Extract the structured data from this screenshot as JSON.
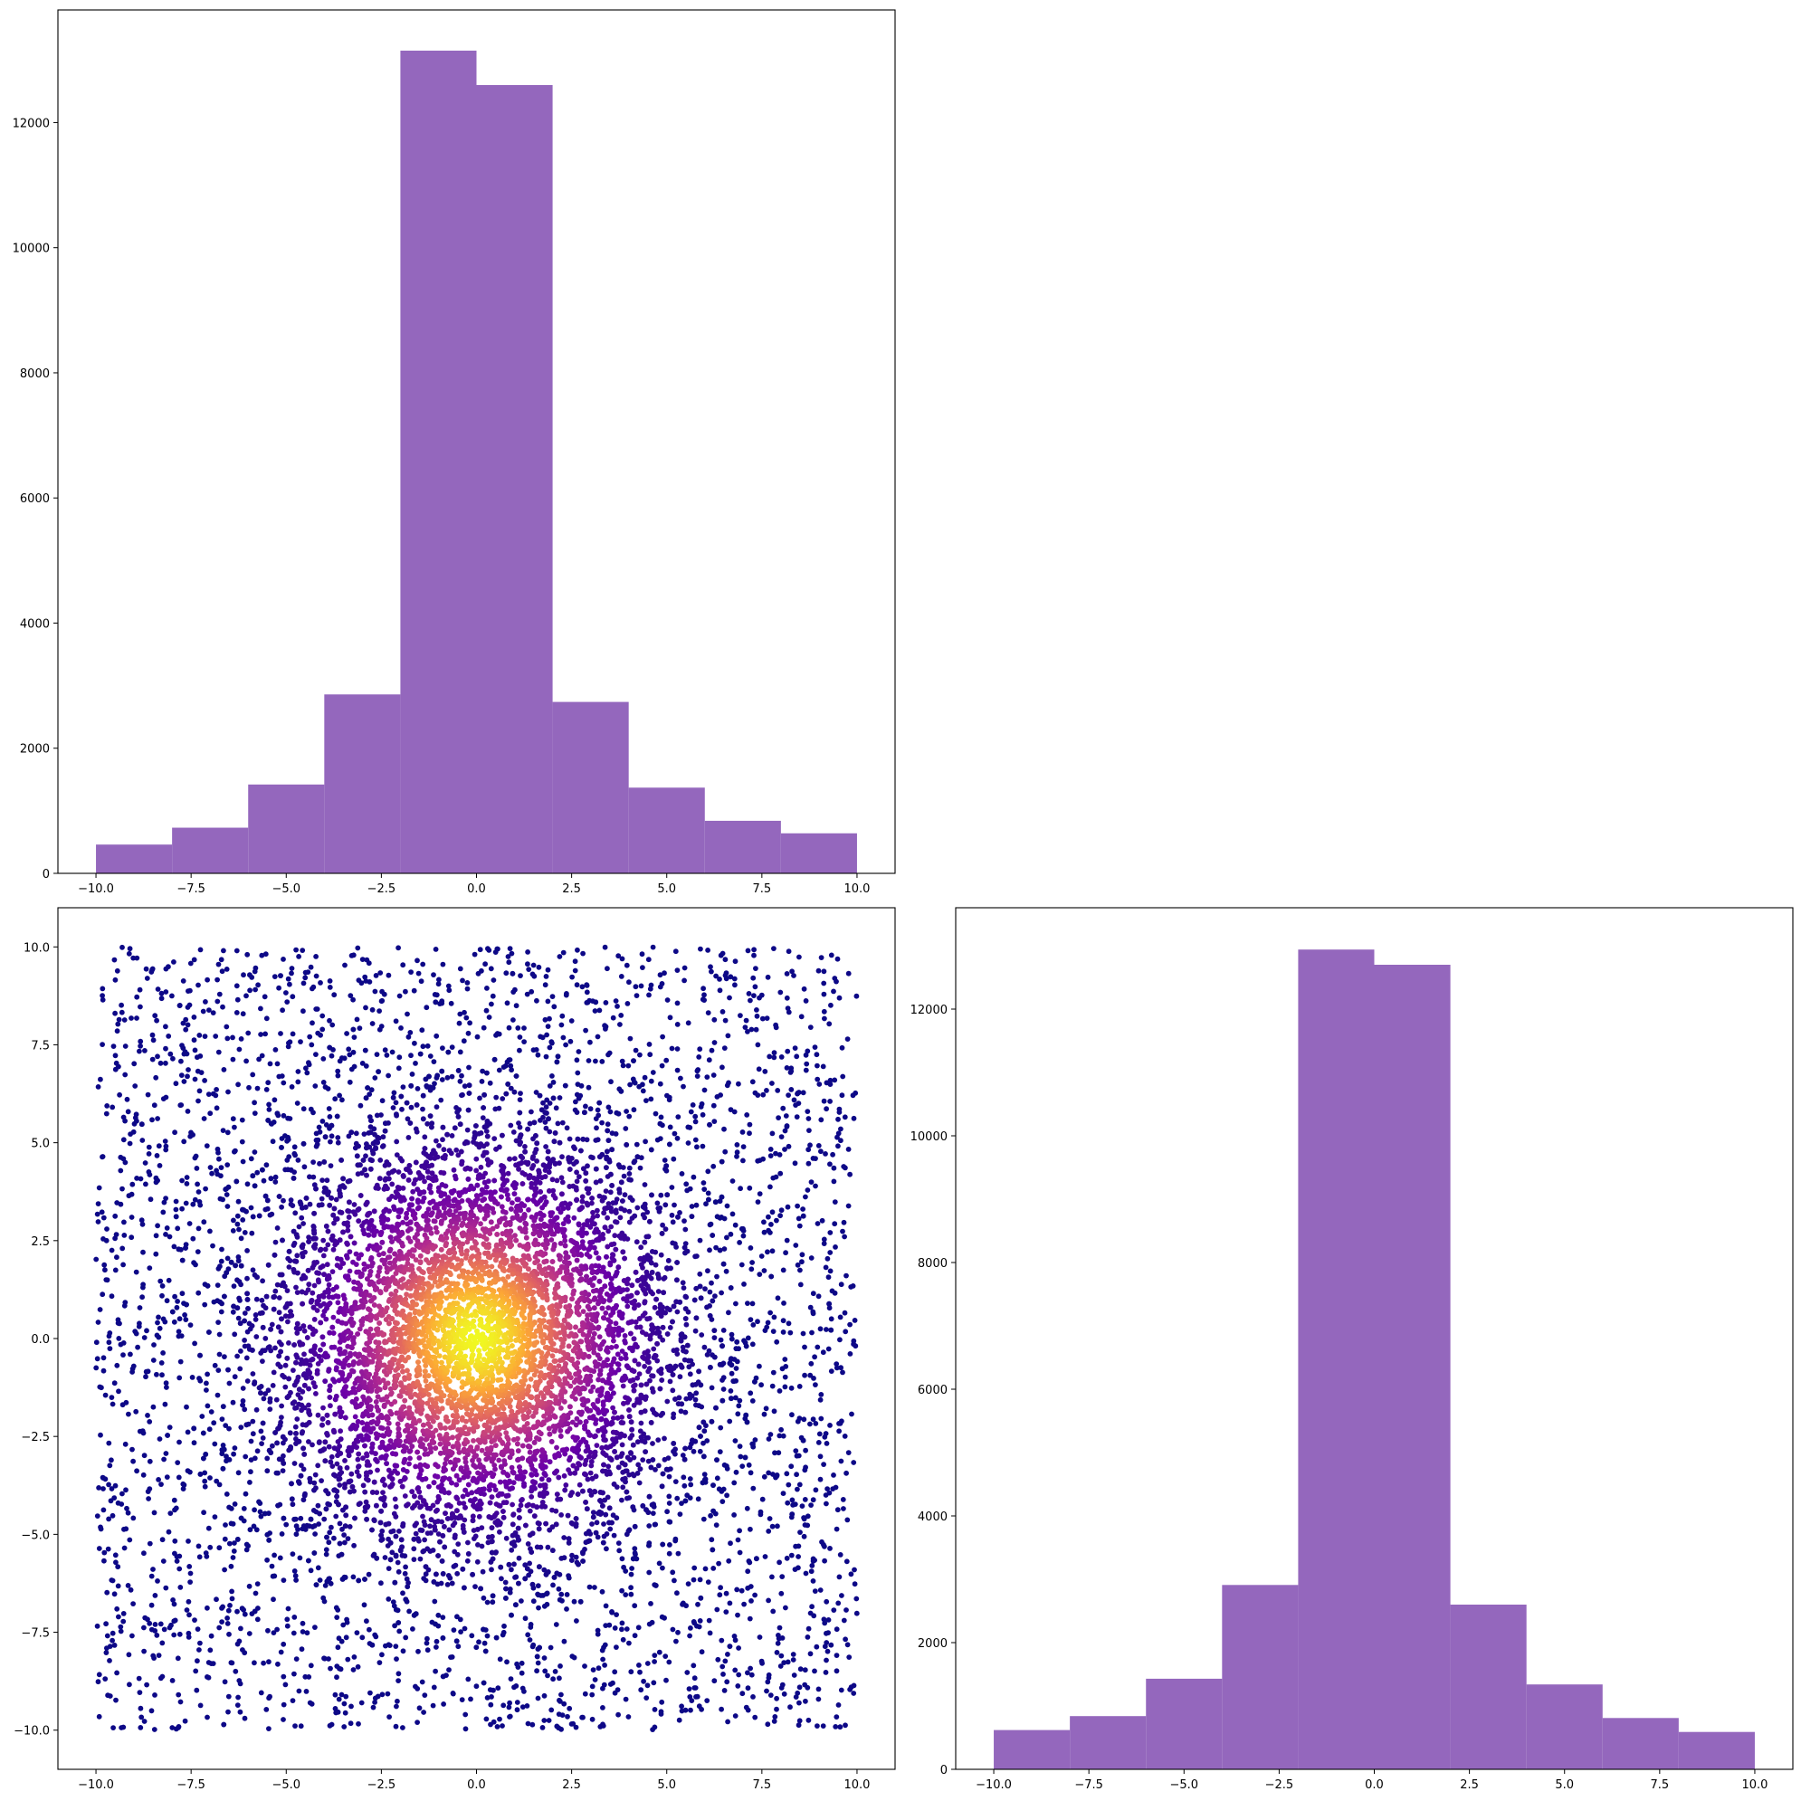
{
  "chart_data": [
    {
      "type": "bar",
      "panel": "top-left",
      "title": "",
      "xlabel": "",
      "ylabel": "",
      "bin_edges": [
        -10,
        -8,
        -6,
        -4,
        -2,
        0,
        2,
        4,
        6,
        8,
        10
      ],
      "values": [
        460,
        730,
        1420,
        2860,
        13150,
        12600,
        2740,
        1370,
        840,
        640
      ],
      "bar_color": "#9467bd",
      "xlim": [
        -11,
        11
      ],
      "ylim": [
        0,
        13800
      ],
      "xticks": [
        -10,
        -7.5,
        -5,
        -2.5,
        0,
        2.5,
        5,
        7.5,
        10
      ],
      "xtick_labels": [
        "−10.0",
        "−7.5",
        "−5.0",
        "−2.5",
        "0.0",
        "2.5",
        "5.0",
        "7.5",
        "10.0"
      ],
      "yticks": [
        0,
        2000,
        4000,
        6000,
        8000,
        10000,
        12000
      ],
      "ytick_labels": [
        "0",
        "2000",
        "4000",
        "6000",
        "8000",
        "10000",
        "12000"
      ],
      "grid": false
    },
    {
      "type": "scatter",
      "panel": "bottom-left",
      "title": "",
      "xlabel": "",
      "ylabel": "",
      "description_of_points": "random points uniform-ish within [-10,10] square, densest near origin, colored by density (plasma colormap: dark blue edges to yellow center)",
      "x_range": [
        -10,
        10
      ],
      "y_range": [
        -10,
        10
      ],
      "center": [
        0,
        0
      ],
      "colormap": [
        "#0d0887",
        "#6a00a8",
        "#b12a90",
        "#e16462",
        "#fca636",
        "#f0f921"
      ],
      "xlim": [
        -11,
        11
      ],
      "ylim": [
        -11,
        11
      ],
      "xticks": [
        -10,
        -7.5,
        -5,
        -2.5,
        0,
        2.5,
        5,
        7.5,
        10
      ],
      "xtick_labels": [
        "−10.0",
        "−7.5",
        "−5.0",
        "−2.5",
        "0.0",
        "2.5",
        "5.0",
        "7.5",
        "10.0"
      ],
      "yticks": [
        -10,
        -7.5,
        -5,
        -2.5,
        0,
        2.5,
        5,
        7.5,
        10
      ],
      "ytick_labels": [
        "−10.0",
        "−7.5",
        "−5.0",
        "−2.5",
        "0.0",
        "2.5",
        "5.0",
        "7.5",
        "10.0"
      ],
      "grid": false
    },
    {
      "type": "bar",
      "panel": "bottom-right",
      "title": "",
      "xlabel": "",
      "ylabel": "",
      "bin_edges": [
        -10,
        -8,
        -6,
        -4,
        -2,
        0,
        2,
        4,
        6,
        8,
        10
      ],
      "values": [
        620,
        840,
        1430,
        2910,
        12940,
        12700,
        2600,
        1340,
        810,
        590
      ],
      "bar_color": "#9467bd",
      "xlim": [
        -11,
        11
      ],
      "ylim": [
        0,
        13600
      ],
      "xticks": [
        -10,
        -7.5,
        -5,
        -2.5,
        0,
        2.5,
        5,
        7.5,
        10
      ],
      "xtick_labels": [
        "−10.0",
        "−7.5",
        "−5.0",
        "−2.5",
        "0.0",
        "2.5",
        "5.0",
        "7.5",
        "10.0"
      ],
      "yticks": [
        0,
        2000,
        4000,
        6000,
        8000,
        10000,
        12000
      ],
      "ytick_labels": [
        "0",
        "2000",
        "4000",
        "6000",
        "8000",
        "10000",
        "12000"
      ],
      "grid": false
    }
  ]
}
